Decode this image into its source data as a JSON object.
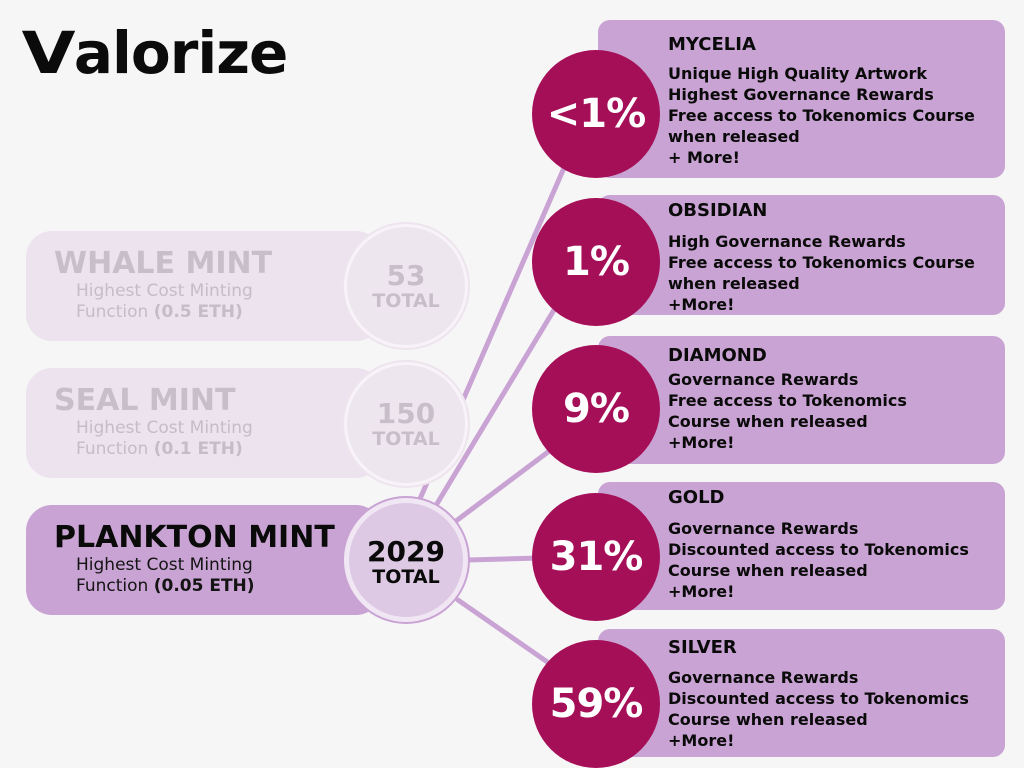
{
  "logo": {
    "mark": "V",
    "rest": "alorize"
  },
  "mints": [
    {
      "title": "WHALE MINT",
      "desc_line1": "Highest Cost Minting",
      "desc_line2": "Function",
      "price": "(0.5 ETH)",
      "count": "53",
      "count_label": "TOTAL",
      "state": "faded"
    },
    {
      "title": "SEAL MINT",
      "desc_line1": "Highest Cost Minting",
      "desc_line2": "Function",
      "price": "(0.1 ETH)",
      "count": "150",
      "count_label": "TOTAL",
      "state": "faded"
    },
    {
      "title": "PLANKTON MINT",
      "desc_line1": "Highest Cost Minting",
      "desc_line2": "Function",
      "price": "(0.05 ETH)",
      "count": "2029",
      "count_label": "TOTAL",
      "state": "active"
    }
  ],
  "tiers": [
    {
      "name": "MYCELIA",
      "percent": "<1%",
      "perks": [
        "Unique High Quality Artwork",
        "Highest Governance Rewards",
        "Free access to Tokenomics Course",
        "when released",
        "+ More!"
      ]
    },
    {
      "name": "OBSIDIAN",
      "percent": "1%",
      "perks": [
        "High Governance Rewards",
        "Free access to Tokenomics Course",
        "when released",
        "+More!"
      ]
    },
    {
      "name": "DIAMOND",
      "percent": "9%",
      "perks": [
        "Governance Rewards",
        "Free access to Tokenomics",
        "Course when released",
        "+More!"
      ]
    },
    {
      "name": "GOLD",
      "percent": "31%",
      "perks": [
        "Governance Rewards",
        "Discounted access to Tokenomics",
        "Course when released",
        "+More!"
      ]
    },
    {
      "name": "SILVER",
      "percent": "59%",
      "perks": [
        "Governance Rewards",
        "Discounted access to Tokenomics",
        "Course when released",
        "+More!"
      ]
    }
  ],
  "colors": {
    "accent": "#a50f57",
    "panel": "#c9a3d3",
    "faded": "#ece3ee",
    "line": "#c9a3d3"
  }
}
